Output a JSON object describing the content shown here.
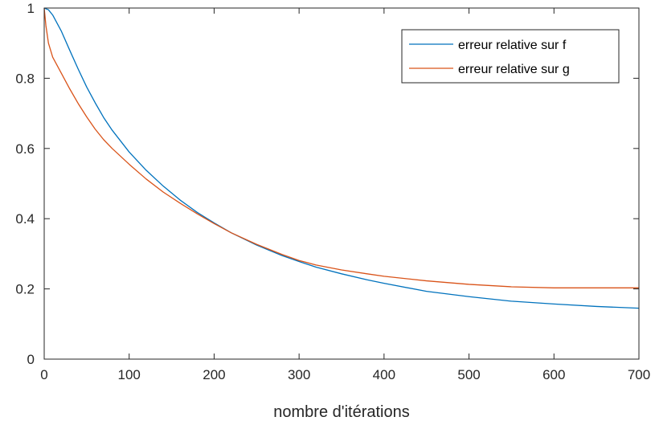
{
  "chart_data": {
    "type": "line",
    "title": "",
    "xlabel": "nombre d'itérations",
    "ylabel": "",
    "xlim": [
      0,
      700
    ],
    "ylim": [
      0,
      1
    ],
    "xticks": [
      0,
      100,
      200,
      300,
      400,
      500,
      600,
      700
    ],
    "yticks": [
      0,
      0.2,
      0.4,
      0.6,
      0.8,
      1
    ],
    "xtick_labels": [
      "0",
      "100",
      "200",
      "300",
      "400",
      "500",
      "600",
      "700"
    ],
    "ytick_labels": [
      "0",
      "0.2",
      "0.4",
      "0.6",
      "0.8",
      "1"
    ],
    "grid": false,
    "legend_position": "top-right",
    "series": [
      {
        "name": "erreur relative sur f",
        "color": "#0072BD",
        "x": [
          0,
          5,
          10,
          20,
          30,
          40,
          50,
          60,
          70,
          80,
          100,
          120,
          140,
          160,
          180,
          200,
          220,
          250,
          280,
          300,
          320,
          350,
          380,
          400,
          450,
          500,
          550,
          600,
          650,
          700
        ],
        "y": [
          1.0,
          0.995,
          0.98,
          0.935,
          0.88,
          0.826,
          0.775,
          0.73,
          0.688,
          0.652,
          0.59,
          0.538,
          0.493,
          0.453,
          0.418,
          0.388,
          0.36,
          0.325,
          0.295,
          0.278,
          0.262,
          0.243,
          0.226,
          0.216,
          0.193,
          0.178,
          0.165,
          0.157,
          0.15,
          0.145
        ]
      },
      {
        "name": "erreur relative sur g",
        "color": "#D95319",
        "x": [
          0,
          2,
          5,
          10,
          20,
          30,
          40,
          50,
          60,
          70,
          80,
          100,
          120,
          140,
          160,
          180,
          200,
          220,
          250,
          280,
          300,
          320,
          350,
          380,
          400,
          450,
          500,
          550,
          600,
          650,
          700
        ],
        "y": [
          1.0,
          0.95,
          0.9,
          0.86,
          0.815,
          0.77,
          0.728,
          0.69,
          0.655,
          0.625,
          0.6,
          0.555,
          0.513,
          0.476,
          0.444,
          0.414,
          0.386,
          0.36,
          0.327,
          0.298,
          0.281,
          0.268,
          0.254,
          0.243,
          0.236,
          0.223,
          0.213,
          0.206,
          0.203,
          0.203,
          0.203
        ]
      }
    ]
  }
}
